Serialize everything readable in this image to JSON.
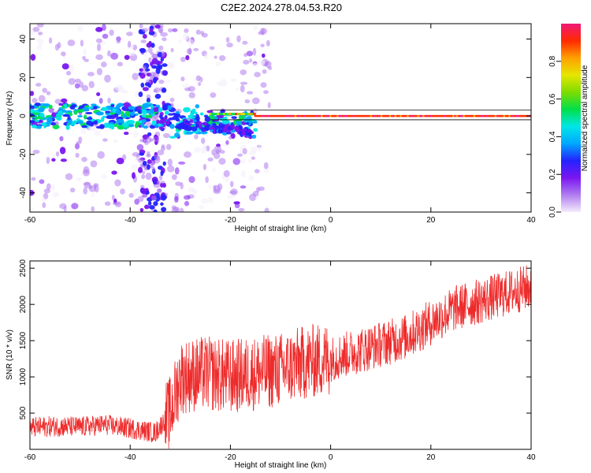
{
  "figure": {
    "title": "C2E2.2024.278.04.53.R20"
  },
  "colors": {
    "snr_line": "#ee2b2b",
    "frame": "#000000",
    "background": "#ffffff"
  },
  "chart_data": [
    {
      "type": "heatmap",
      "xlabel": "Height of straight line (km)",
      "ylabel": "Frequency (Hz)",
      "xlim": [
        -60,
        40
      ],
      "ylim": [
        -50,
        48
      ],
      "xticks": [
        -60,
        -40,
        -20,
        0,
        20,
        40
      ],
      "yticks": [
        -40,
        -20,
        0,
        20,
        40
      ],
      "colorbar": {
        "label": "Normalized spectral amplitude",
        "range": [
          0,
          1
        ],
        "ticks": [
          0.0,
          0.2,
          0.4,
          0.6,
          0.8
        ],
        "colormap": [
          "#f4ecfb",
          "#b07cf0",
          "#7a16f0",
          "#2323ff",
          "#00a8ff",
          "#00e6e6",
          "#00e04a",
          "#7ddc00",
          "#e6e600",
          "#ffa000",
          "#ff2a00",
          "#f01878"
        ]
      },
      "signal_band": {
        "note": "main energy concentrated near 0 Hz",
        "center_hz": 0,
        "highest_amplitude_above_km": -15,
        "scattered_energy_km": [
          -60,
          -32
        ]
      }
    },
    {
      "type": "line",
      "xlabel": "Height of straight line (km)",
      "ylabel": "SNR (10 * v/v)",
      "xlim": [
        -60,
        40
      ],
      "ylim": [
        0,
        2600
      ],
      "xticks": [
        -60,
        -40,
        -20,
        0,
        20,
        40
      ],
      "yticks": [
        500,
        1000,
        1500,
        2000,
        2500
      ],
      "series": [
        {
          "x": [
            -60,
            -55,
            -50,
            -45,
            -40,
            -35,
            -32,
            -30,
            -25,
            -20,
            -15,
            -10,
            -5,
            0,
            5,
            10,
            15,
            20,
            25,
            30,
            35,
            40
          ],
          "y": [
            300,
            320,
            310,
            340,
            290,
            230,
            500,
            1000,
            1050,
            1000,
            1050,
            1100,
            1200,
            1250,
            1350,
            1450,
            1550,
            1750,
            1950,
            2050,
            2150,
            2250
          ]
        }
      ]
    }
  ]
}
